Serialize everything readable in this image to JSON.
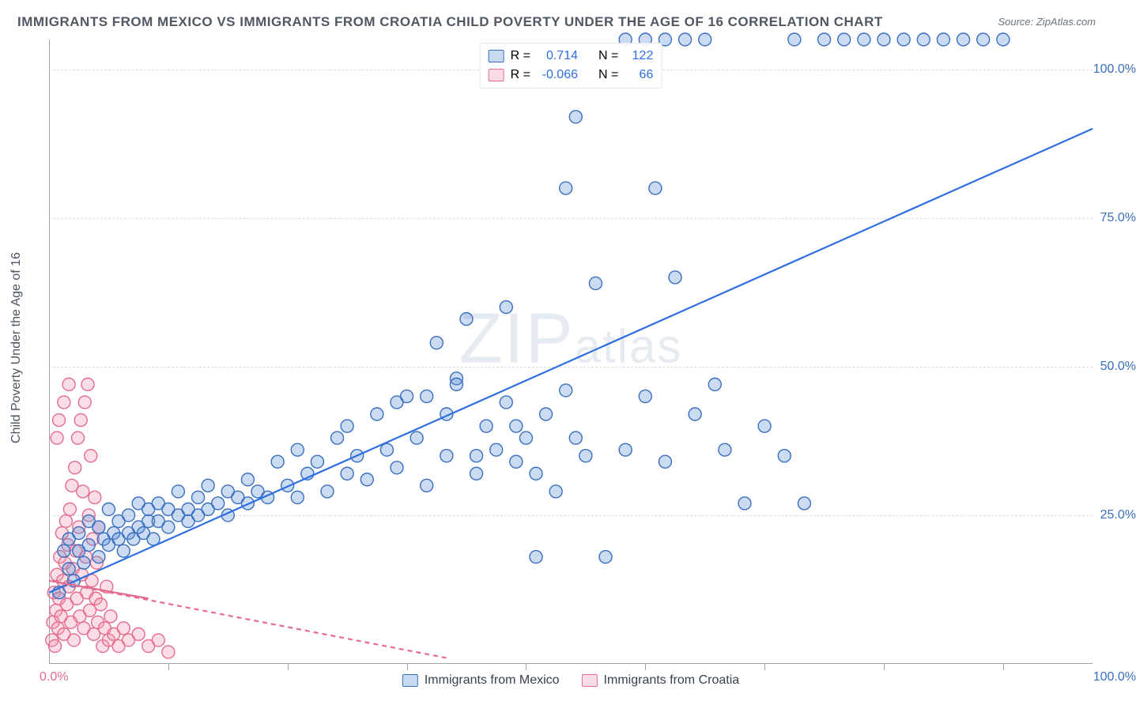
{
  "title": "IMMIGRANTS FROM MEXICO VS IMMIGRANTS FROM CROATIA CHILD POVERTY UNDER THE AGE OF 16 CORRELATION CHART",
  "source_label": "Source: ZipAtlas.com",
  "y_axis_label": "Child Poverty Under the Age of 16",
  "watermark_big": "ZIP",
  "watermark_small": "atlas",
  "chart": {
    "type": "scatter",
    "xlim": [
      0,
      105
    ],
    "ylim": [
      0,
      105
    ],
    "y_ticks": [
      25,
      50,
      75,
      100
    ],
    "y_tick_labels": [
      "25.0%",
      "50.0%",
      "75.0%",
      "100.0%"
    ],
    "x_tick_min": "0.0%",
    "x_tick_max": "100.0%",
    "x_minor_ticks": [
      12,
      24,
      36,
      48,
      60,
      72,
      84,
      96
    ],
    "grid_color": "#d8dde4",
    "background_color": "#ffffff",
    "marker_radius": 8,
    "marker_fill_opacity": 0.32,
    "marker_stroke_width": 1.4,
    "line_width": 2.2,
    "series": [
      {
        "name": "Immigrants from Mexico",
        "label": "Immigrants from Mexico",
        "color": "#5b8fd6",
        "stroke": "#3a6fc0",
        "line_color": "#2d6fe0",
        "r_value": "0.714",
        "n_value": "122",
        "trend": {
          "x1": 0,
          "y1": 12,
          "x2": 105,
          "y2": 90,
          "dash": "none"
        },
        "points": [
          [
            1,
            12
          ],
          [
            1.5,
            19
          ],
          [
            2,
            16
          ],
          [
            2,
            21
          ],
          [
            2.5,
            14
          ],
          [
            3,
            19
          ],
          [
            3,
            22
          ],
          [
            3.5,
            17
          ],
          [
            4,
            20
          ],
          [
            4,
            24
          ],
          [
            5,
            18
          ],
          [
            5,
            23
          ],
          [
            5.5,
            21
          ],
          [
            6,
            20
          ],
          [
            6,
            26
          ],
          [
            6.5,
            22
          ],
          [
            7,
            21
          ],
          [
            7,
            24
          ],
          [
            7.5,
            19
          ],
          [
            8,
            22
          ],
          [
            8,
            25
          ],
          [
            8.5,
            21
          ],
          [
            9,
            23
          ],
          [
            9,
            27
          ],
          [
            9.5,
            22
          ],
          [
            10,
            24
          ],
          [
            10,
            26
          ],
          [
            10.5,
            21
          ],
          [
            11,
            24
          ],
          [
            11,
            27
          ],
          [
            12,
            23
          ],
          [
            12,
            26
          ],
          [
            13,
            25
          ],
          [
            13,
            29
          ],
          [
            14,
            24
          ],
          [
            14,
            26
          ],
          [
            15,
            25
          ],
          [
            15,
            28
          ],
          [
            16,
            26
          ],
          [
            16,
            30
          ],
          [
            17,
            27
          ],
          [
            18,
            25
          ],
          [
            18,
            29
          ],
          [
            19,
            28
          ],
          [
            20,
            27
          ],
          [
            20,
            31
          ],
          [
            21,
            29
          ],
          [
            22,
            28
          ],
          [
            23,
            34
          ],
          [
            24,
            30
          ],
          [
            25,
            28
          ],
          [
            25,
            36
          ],
          [
            26,
            32
          ],
          [
            27,
            34
          ],
          [
            28,
            29
          ],
          [
            29,
            38
          ],
          [
            30,
            32
          ],
          [
            30,
            40
          ],
          [
            31,
            35
          ],
          [
            32,
            31
          ],
          [
            33,
            42
          ],
          [
            34,
            36
          ],
          [
            35,
            33
          ],
          [
            36,
            45
          ],
          [
            37,
            38
          ],
          [
            38,
            30
          ],
          [
            39,
            54
          ],
          [
            40,
            42
          ],
          [
            40,
            35
          ],
          [
            41,
            48
          ],
          [
            42,
            58
          ],
          [
            43,
            32
          ],
          [
            44,
            40
          ],
          [
            45,
            36
          ],
          [
            46,
            44
          ],
          [
            47,
            34
          ],
          [
            48,
            38
          ],
          [
            49,
            18
          ],
          [
            50,
            42
          ],
          [
            51,
            29
          ],
          [
            52,
            46
          ],
          [
            53,
            92
          ],
          [
            54,
            35
          ],
          [
            55,
            64
          ],
          [
            56,
            18
          ],
          [
            58,
            36
          ],
          [
            60,
            45
          ],
          [
            62,
            34
          ],
          [
            63,
            65
          ],
          [
            65,
            42
          ],
          [
            67,
            47
          ],
          [
            68,
            36
          ],
          [
            70,
            27
          ],
          [
            72,
            40
          ],
          [
            74,
            35
          ],
          [
            76,
            27
          ],
          [
            78,
            105
          ],
          [
            80,
            105
          ],
          [
            82,
            105
          ],
          [
            84,
            105
          ],
          [
            86,
            105
          ],
          [
            88,
            105
          ],
          [
            90,
            105
          ],
          [
            92,
            105
          ],
          [
            94,
            105
          ],
          [
            96,
            105
          ],
          [
            58,
            105
          ],
          [
            60,
            105
          ],
          [
            62,
            105
          ],
          [
            64,
            105
          ],
          [
            66,
            105
          ],
          [
            52,
            80
          ],
          [
            46,
            60
          ],
          [
            41,
            47
          ],
          [
            38,
            45
          ],
          [
            35,
            44
          ],
          [
            43,
            35
          ],
          [
            47,
            40
          ],
          [
            49,
            32
          ],
          [
            53,
            38
          ],
          [
            61,
            80
          ],
          [
            75,
            105
          ]
        ]
      },
      {
        "name": "Immigrants from Croatia",
        "label": "Immigrants from Croatia",
        "color": "#f395b0",
        "stroke": "#e56b8f",
        "line_color": "#e56b8f",
        "r_value": "-0.066",
        "n_value": "66",
        "trend": {
          "x1": 0,
          "y1": 14,
          "x2": 40,
          "y2": 1,
          "dash": "6,5"
        },
        "trend_solid": {
          "x1": 0,
          "y1": 14,
          "x2": 10,
          "y2": 11,
          "dash": "none"
        },
        "points": [
          [
            0.3,
            4
          ],
          [
            0.4,
            7
          ],
          [
            0.5,
            12
          ],
          [
            0.6,
            3
          ],
          [
            0.7,
            9
          ],
          [
            0.8,
            15
          ],
          [
            0.9,
            6
          ],
          [
            1.0,
            11
          ],
          [
            1.1,
            18
          ],
          [
            1.2,
            8
          ],
          [
            1.3,
            22
          ],
          [
            1.4,
            14
          ],
          [
            1.5,
            5
          ],
          [
            1.6,
            17
          ],
          [
            1.7,
            24
          ],
          [
            1.8,
            10
          ],
          [
            1.9,
            20
          ],
          [
            2.0,
            13
          ],
          [
            2.1,
            26
          ],
          [
            2.2,
            7
          ],
          [
            2.3,
            30
          ],
          [
            2.4,
            16
          ],
          [
            2.5,
            4
          ],
          [
            2.6,
            33
          ],
          [
            2.7,
            19
          ],
          [
            2.8,
            11
          ],
          [
            2.9,
            38
          ],
          [
            3.0,
            23
          ],
          [
            3.1,
            8
          ],
          [
            3.2,
            41
          ],
          [
            3.3,
            15
          ],
          [
            3.4,
            29
          ],
          [
            3.5,
            6
          ],
          [
            3.6,
            44
          ],
          [
            3.7,
            18
          ],
          [
            3.8,
            12
          ],
          [
            3.9,
            47
          ],
          [
            4.0,
            25
          ],
          [
            4.1,
            9
          ],
          [
            4.2,
            35
          ],
          [
            4.3,
            14
          ],
          [
            4.4,
            21
          ],
          [
            4.5,
            5
          ],
          [
            4.6,
            28
          ],
          [
            4.7,
            11
          ],
          [
            4.8,
            17
          ],
          [
            4.9,
            7
          ],
          [
            5.0,
            23
          ],
          [
            5.2,
            10
          ],
          [
            5.4,
            3
          ],
          [
            5.6,
            6
          ],
          [
            5.8,
            13
          ],
          [
            6.0,
            4
          ],
          [
            6.2,
            8
          ],
          [
            6.5,
            5
          ],
          [
            7.0,
            3
          ],
          [
            7.5,
            6
          ],
          [
            8.0,
            4
          ],
          [
            9.0,
            5
          ],
          [
            10.0,
            3
          ],
          [
            11.0,
            4
          ],
          [
            12.0,
            2
          ],
          [
            1.0,
            41
          ],
          [
            1.5,
            44
          ],
          [
            2.0,
            47
          ],
          [
            0.8,
            38
          ]
        ]
      }
    ]
  },
  "legend_top": {
    "r_label": "R =",
    "n_label": "N ="
  }
}
